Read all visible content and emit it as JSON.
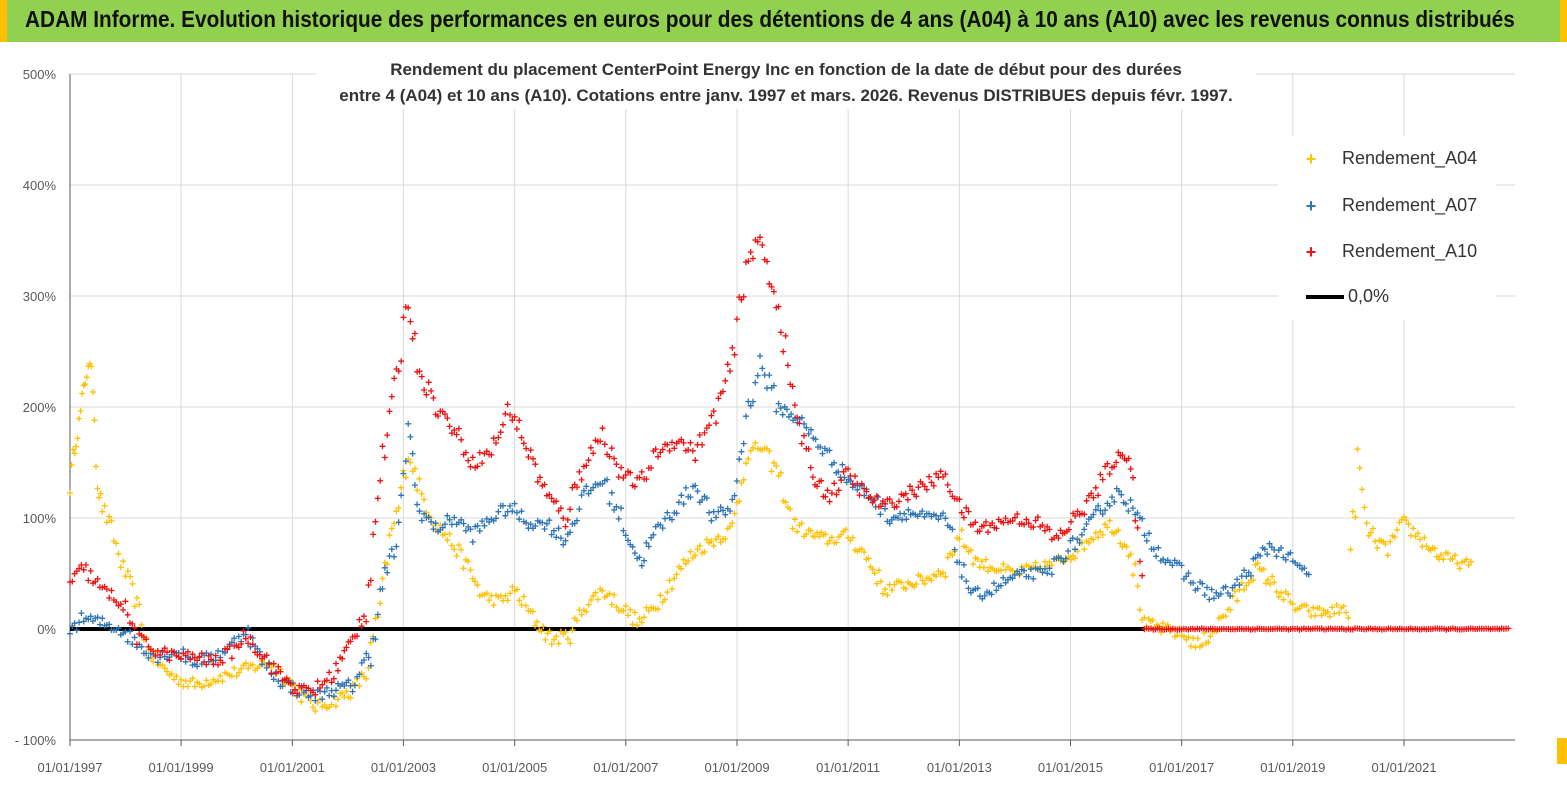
{
  "header": {
    "title": "ADAM Informe. Evolution historique des performances en euros pour des détentions de 4 ans (A04) à 10 ans (A10) avec les revenus connus distribués",
    "background": "#92d050",
    "border_color": "#ffc000"
  },
  "chart_data": {
    "type": "scatter",
    "title_lines": [
      "Rendement du placement CenterPoint Energy Inc en fonction de la date de début pour des durées",
      "entre 4 (A04) et 10 ans (A10).  Cotations entre janv. 1997 et mars. 2026. Revenus DISTRIBUES depuis févr. 1997."
    ],
    "xlim": [
      "1997-01-01",
      "2022-12-31"
    ],
    "x_ticks": [
      "01/01/1997",
      "01/01/1999",
      "01/01/2001",
      "01/01/2003",
      "01/01/2005",
      "01/01/2007",
      "01/01/2009",
      "01/01/2011",
      "01/01/2013",
      "01/01/2015",
      "01/01/2017",
      "01/01/2019",
      "01/01/2021"
    ],
    "ylim": [
      -100,
      500
    ],
    "y_unit": "%",
    "y_ticks": [
      "- 100%",
      "0%",
      "100%",
      "200%",
      "300%",
      "400%",
      "500%"
    ],
    "grid": true,
    "legend_position": "top-right",
    "series": [
      {
        "name": "Rendement_A04",
        "color": "#ffc000",
        "marker": "+",
        "points": [
          [
            "1997-01-01",
            130
          ],
          [
            "1997-02-01",
            165
          ],
          [
            "1997-03-01",
            185
          ],
          [
            "1997-04-01",
            215
          ],
          [
            "1997-05-01",
            240
          ],
          [
            "1997-06-01",
            225
          ],
          [
            "1997-07-01",
            130
          ],
          [
            "1997-08-01",
            110
          ],
          [
            "1997-10-01",
            90
          ],
          [
            "1997-12-01",
            60
          ],
          [
            "1998-02-01",
            40
          ],
          [
            "1998-04-01",
            15
          ],
          [
            "1998-06-01",
            -20
          ],
          [
            "1998-09-01",
            -35
          ],
          [
            "1998-12-01",
            -45
          ],
          [
            "1999-04-01",
            -50
          ],
          [
            "1999-08-01",
            -45
          ],
          [
            "1999-12-01",
            -40
          ],
          [
            "2000-04-01",
            -35
          ],
          [
            "2000-08-01",
            -30
          ],
          [
            "2000-12-01",
            -45
          ],
          [
            "2001-03-01",
            -60
          ],
          [
            "2001-06-01",
            -70
          ],
          [
            "2001-10-01",
            -65
          ],
          [
            "2002-02-01",
            -55
          ],
          [
            "2002-05-01",
            -40
          ],
          [
            "2002-08-01",
            20
          ],
          [
            "2002-10-01",
            80
          ],
          [
            "2002-12-01",
            110
          ],
          [
            "2003-02-01",
            160
          ],
          [
            "2003-05-01",
            120
          ],
          [
            "2003-08-01",
            95
          ],
          [
            "2003-12-01",
            75
          ],
          [
            "2004-03-01",
            55
          ],
          [
            "2004-06-01",
            30
          ],
          [
            "2004-10-01",
            25
          ],
          [
            "2005-01-01",
            35
          ],
          [
            "2005-05-01",
            10
          ],
          [
            "2005-09-01",
            -10
          ],
          [
            "2006-01-01",
            -5
          ],
          [
            "2006-04-01",
            20
          ],
          [
            "2006-08-01",
            35
          ],
          [
            "2006-12-01",
            20
          ],
          [
            "2007-04-01",
            5
          ],
          [
            "2007-08-01",
            25
          ],
          [
            "2007-12-01",
            50
          ],
          [
            "2008-04-01",
            70
          ],
          [
            "2008-08-01",
            80
          ],
          [
            "2008-12-01",
            90
          ],
          [
            "2009-03-01",
            155
          ],
          [
            "2009-06-01",
            165
          ],
          [
            "2009-10-01",
            140
          ],
          [
            "2010-01-01",
            95
          ],
          [
            "2010-05-01",
            85
          ],
          [
            "2010-09-01",
            80
          ],
          [
            "2011-01-01",
            85
          ],
          [
            "2011-05-01",
            65
          ],
          [
            "2011-09-01",
            35
          ],
          [
            "2012-01-01",
            40
          ],
          [
            "2012-06-01",
            45
          ],
          [
            "2012-10-01",
            55
          ],
          [
            "2013-01-01",
            85
          ],
          [
            "2013-05-01",
            60
          ],
          [
            "2013-09-01",
            55
          ],
          [
            "2014-01-01",
            50
          ],
          [
            "2014-06-01",
            55
          ],
          [
            "2014-10-01",
            60
          ],
          [
            "2015-02-01",
            70
          ],
          [
            "2015-06-01",
            85
          ],
          [
            "2015-10-01",
            95
          ],
          [
            "2016-02-01",
            70
          ],
          [
            "2016-05-01",
            5
          ],
          [
            "2016-09-01",
            0
          ],
          [
            "2017-01-01",
            -5
          ],
          [
            "2017-05-01",
            -15
          ],
          [
            "2017-09-01",
            5
          ],
          [
            "2018-01-01",
            30
          ],
          [
            "2018-05-01",
            55
          ],
          [
            "2018-09-01",
            40
          ],
          [
            "2019-01-01",
            20
          ],
          [
            "2019-05-01",
            15
          ],
          [
            "2019-09-01",
            15
          ],
          [
            "2020-01-01",
            20
          ],
          [
            "2020-03-01",
            155
          ],
          [
            "2020-05-01",
            90
          ],
          [
            "2020-09-01",
            70
          ],
          [
            "2021-01-01",
            95
          ],
          [
            "2021-05-01",
            80
          ],
          [
            "2021-09-01",
            65
          ],
          [
            "2022-01-01",
            60
          ],
          [
            "2022-04-01",
            55
          ]
        ]
      },
      {
        "name": "Rendement_A07",
        "color": "#2e75b6",
        "marker": "+",
        "points": [
          [
            "1997-01-01",
            0
          ],
          [
            "1997-04-01",
            10
          ],
          [
            "1997-08-01",
            5
          ],
          [
            "1997-12-01",
            0
          ],
          [
            "1998-04-01",
            -15
          ],
          [
            "1998-08-01",
            -25
          ],
          [
            "1998-12-01",
            -20
          ],
          [
            "1999-04-01",
            -30
          ],
          [
            "1999-08-01",
            -25
          ],
          [
            "1999-12-01",
            -15
          ],
          [
            "2000-03-01",
            0
          ],
          [
            "2000-06-01",
            -25
          ],
          [
            "2000-10-01",
            -45
          ],
          [
            "2001-02-01",
            -55
          ],
          [
            "2001-06-01",
            -60
          ],
          [
            "2001-10-01",
            -55
          ],
          [
            "2002-02-01",
            -50
          ],
          [
            "2002-06-01",
            -20
          ],
          [
            "2002-09-01",
            50
          ],
          [
            "2002-12-01",
            80
          ],
          [
            "2003-02-01",
            190
          ],
          [
            "2003-04-01",
            110
          ],
          [
            "2003-08-01",
            90
          ],
          [
            "2003-12-01",
            100
          ],
          [
            "2004-04-01",
            85
          ],
          [
            "2004-08-01",
            100
          ],
          [
            "2004-12-01",
            110
          ],
          [
            "2005-04-01",
            95
          ],
          [
            "2005-08-01",
            95
          ],
          [
            "2005-12-01",
            80
          ],
          [
            "2006-04-01",
            120
          ],
          [
            "2006-08-01",
            135
          ],
          [
            "2006-12-01",
            100
          ],
          [
            "2007-04-01",
            60
          ],
          [
            "2007-08-01",
            90
          ],
          [
            "2007-12-01",
            110
          ],
          [
            "2008-04-01",
            130
          ],
          [
            "2008-08-01",
            100
          ],
          [
            "2008-12-01",
            110
          ],
          [
            "2009-03-01",
            190
          ],
          [
            "2009-06-01",
            240
          ],
          [
            "2009-10-01",
            200
          ],
          [
            "2010-02-01",
            190
          ],
          [
            "2010-06-01",
            170
          ],
          [
            "2010-10-01",
            150
          ],
          [
            "2011-02-01",
            130
          ],
          [
            "2011-06-01",
            120
          ],
          [
            "2011-10-01",
            100
          ],
          [
            "2012-02-01",
            105
          ],
          [
            "2012-06-01",
            100
          ],
          [
            "2012-10-01",
            100
          ],
          [
            "2013-01-01",
            60
          ],
          [
            "2013-04-01",
            30
          ],
          [
            "2013-08-01",
            35
          ],
          [
            "2013-12-01",
            45
          ],
          [
            "2014-04-01",
            50
          ],
          [
            "2014-08-01",
            50
          ],
          [
            "2014-12-01",
            70
          ],
          [
            "2015-04-01",
            85
          ],
          [
            "2015-08-01",
            110
          ],
          [
            "2015-12-01",
            125
          ],
          [
            "2016-04-01",
            95
          ],
          [
            "2016-08-01",
            70
          ],
          [
            "2016-12-01",
            55
          ],
          [
            "2017-04-01",
            40
          ],
          [
            "2017-08-01",
            30
          ],
          [
            "2017-12-01",
            35
          ],
          [
            "2018-04-01",
            55
          ],
          [
            "2018-08-01",
            75
          ],
          [
            "2018-12-01",
            65
          ],
          [
            "2019-02-01",
            55
          ],
          [
            "2019-05-01",
            50
          ]
        ]
      },
      {
        "name": "Rendement_A10",
        "color": "#ee1111",
        "marker": "+",
        "points": [
          [
            "1997-01-01",
            40
          ],
          [
            "1997-04-01",
            55
          ],
          [
            "1997-08-01",
            35
          ],
          [
            "1997-12-01",
            25
          ],
          [
            "1998-04-01",
            -10
          ],
          [
            "1998-08-01",
            -20
          ],
          [
            "1998-12-01",
            -25
          ],
          [
            "1999-04-01",
            -25
          ],
          [
            "1999-08-01",
            -30
          ],
          [
            "1999-12-01",
            -20
          ],
          [
            "2000-03-01",
            -5
          ],
          [
            "2000-06-01",
            -20
          ],
          [
            "2000-10-01",
            -40
          ],
          [
            "2001-02-01",
            -55
          ],
          [
            "2001-06-01",
            -55
          ],
          [
            "2001-10-01",
            -40
          ],
          [
            "2002-02-01",
            -10
          ],
          [
            "2002-05-01",
            20
          ],
          [
            "2002-08-01",
            140
          ],
          [
            "2002-11-01",
            210
          ],
          [
            "2003-02-01",
            300
          ],
          [
            "2003-04-01",
            240
          ],
          [
            "2003-08-01",
            200
          ],
          [
            "2003-12-01",
            180
          ],
          [
            "2004-04-01",
            150
          ],
          [
            "2004-08-01",
            160
          ],
          [
            "2004-12-01",
            200
          ],
          [
            "2005-04-01",
            160
          ],
          [
            "2005-08-01",
            120
          ],
          [
            "2005-12-01",
            100
          ],
          [
            "2006-04-01",
            150
          ],
          [
            "2006-08-01",
            175
          ],
          [
            "2006-12-01",
            140
          ],
          [
            "2007-04-01",
            130
          ],
          [
            "2007-08-01",
            160
          ],
          [
            "2007-12-01",
            170
          ],
          [
            "2008-04-01",
            160
          ],
          [
            "2008-08-01",
            190
          ],
          [
            "2008-12-01",
            240
          ],
          [
            "2009-03-01",
            330
          ],
          [
            "2009-06-01",
            350
          ],
          [
            "2009-10-01",
            290
          ],
          [
            "2010-01-01",
            210
          ],
          [
            "2010-05-01",
            140
          ],
          [
            "2010-09-01",
            120
          ],
          [
            "2011-01-01",
            140
          ],
          [
            "2011-05-01",
            120
          ],
          [
            "2011-09-01",
            110
          ],
          [
            "2012-01-01",
            120
          ],
          [
            "2012-06-01",
            130
          ],
          [
            "2012-10-01",
            140
          ],
          [
            "2013-01-01",
            110
          ],
          [
            "2013-05-01",
            90
          ],
          [
            "2013-09-01",
            95
          ],
          [
            "2014-01-01",
            100
          ],
          [
            "2014-06-01",
            95
          ],
          [
            "2014-10-01",
            80
          ],
          [
            "2015-02-01",
            100
          ],
          [
            "2015-06-01",
            120
          ],
          [
            "2015-10-01",
            150
          ],
          [
            "2016-02-01",
            160
          ],
          [
            "2016-05-01",
            0
          ],
          [
            "2017-01-01",
            0
          ],
          [
            "2018-01-01",
            0
          ],
          [
            "2019-01-01",
            0
          ],
          [
            "2020-01-01",
            0
          ],
          [
            "2021-01-01",
            0
          ],
          [
            "2022-01-01",
            0
          ],
          [
            "2022-12-01",
            0
          ]
        ]
      }
    ],
    "reference_line": {
      "name": "0,0%",
      "y": 0,
      "color": "#000000"
    }
  }
}
